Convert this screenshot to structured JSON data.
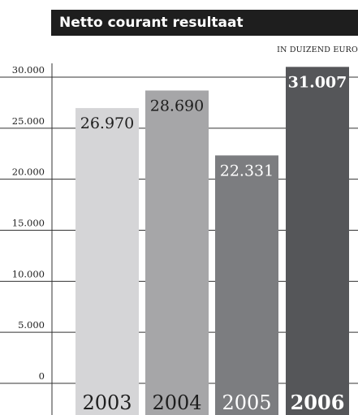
{
  "chart_data": {
    "type": "bar",
    "title": "Netto courant resultaat",
    "unit_label": "IN DUIZEND EURO",
    "categories": [
      "2003",
      "2004",
      "2005",
      "2006"
    ],
    "values": [
      26970,
      28690,
      22331,
      31007
    ],
    "value_labels": [
      "26.970",
      "28.690",
      "22.331",
      "31.007"
    ],
    "ylim": [
      0,
      30000
    ],
    "yticks": [
      0,
      5000,
      10000,
      15000,
      20000,
      25000,
      30000
    ],
    "ytick_labels": [
      "0",
      "5.000",
      "10.000",
      "15.000",
      "20.000",
      "25.000",
      "30.000"
    ],
    "grid": true,
    "bar_colors": [
      "#d5d5d7",
      "#a6a6a8",
      "#7c7d80",
      "#555659"
    ],
    "value_label_colors": [
      "#1e1e1e",
      "#1e1e1e",
      "#ffffff",
      "#ffffff"
    ],
    "highlight_category": "2006"
  }
}
